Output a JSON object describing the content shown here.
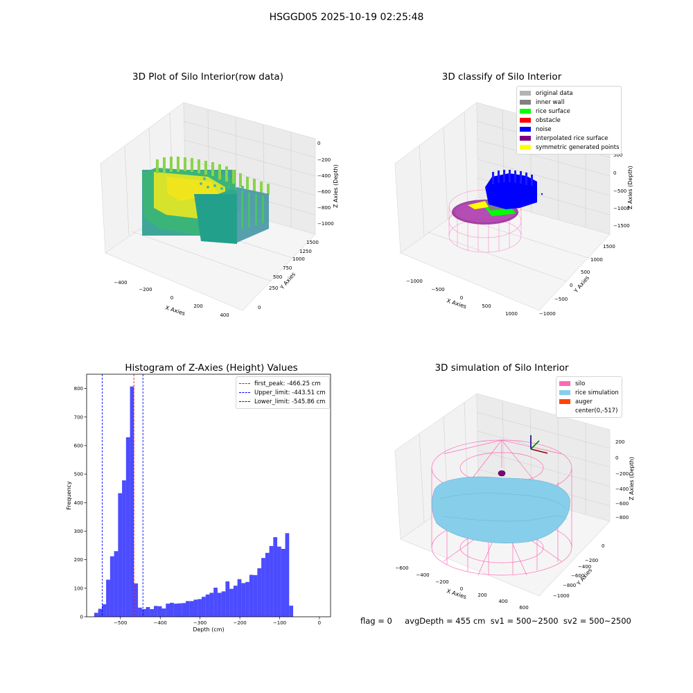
{
  "figure": {
    "suptitle": "HSGGD05 2025-10-19 02:25:48",
    "footer": "flag = 0     avgDepth = 455 cm  sv1 = 500~2500  sv2 = 500~2500"
  },
  "panels": {
    "raw": {
      "title": "3D Plot of Silo Interior(row data)",
      "xlabel": "X Axies",
      "ylabel": "Y Axies",
      "zlabel": "Z Axies (Depth)",
      "xticks": [
        "−400",
        "−200",
        "0",
        "200",
        "400"
      ],
      "yticks": [
        "0",
        "250",
        "500",
        "750",
        "1000",
        "1250",
        "1500"
      ],
      "zticks": [
        "0",
        "−200",
        "−400",
        "−600",
        "−800",
        "−1000"
      ]
    },
    "classify": {
      "title": "3D classify of Silo Interior",
      "xlabel": "X Axies",
      "ylabel": "Y Axies",
      "zlabel": "Z Axies (Depth)",
      "xticks": [
        "−1000",
        "−500",
        "0",
        "500",
        "1000"
      ],
      "yticks": [
        "−1000",
        "−500",
        "0",
        "500",
        "1000",
        "1500"
      ],
      "zticks": [
        "500",
        "0",
        "−500",
        "−1000",
        "−1500"
      ],
      "legend": [
        {
          "label": "original data",
          "color": "#b3b3b3"
        },
        {
          "label": "inner wall",
          "color": "#808080"
        },
        {
          "label": "rice surface",
          "color": "#00ff00"
        },
        {
          "label": "obstacle",
          "color": "#ff0000"
        },
        {
          "label": "noise",
          "color": "#0000ff"
        },
        {
          "label": "interpolated rice surface",
          "color": "#800080"
        },
        {
          "label": "symmetric generated points",
          "color": "#ffff00"
        }
      ]
    },
    "simulation": {
      "title": "3D simulation of Silo Interior",
      "xlabel": "X Axies",
      "ylabel": "Y Axies",
      "zlabel": "Z Axies (Depth)",
      "xticks": [
        "−600",
        "−400",
        "−200",
        "0",
        "200",
        "400",
        "600"
      ],
      "yticks": [
        "0",
        "−200",
        "−400",
        "−600",
        "−800",
        "−1000"
      ],
      "zticks": [
        "200",
        "0",
        "−200",
        "−400",
        "−600",
        "−800"
      ],
      "legend": [
        {
          "label": "silo",
          "color": "#ff69b4"
        },
        {
          "label": "rice simulation",
          "color": "#87ceeb"
        },
        {
          "label": "auger",
          "color": "#ff4500"
        },
        {
          "label": "center(0,-517)",
          "color": ""
        }
      ]
    }
  },
  "chart_data": {
    "type": "bar",
    "title": "Histogram of Z-Axies (Height) Values",
    "xlabel": "Depth (cm)",
    "ylabel": "Frequency",
    "xlim": [
      -585,
      28
    ],
    "ylim": [
      0,
      850
    ],
    "xticks": [
      -500,
      -400,
      -300,
      -200,
      -100,
      0
    ],
    "xtick_labels": [
      "−500",
      "−400",
      "−300",
      "−200",
      "−100",
      "0"
    ],
    "yticks": [
      0,
      100,
      200,
      300,
      400,
      500,
      600,
      700,
      800
    ],
    "bar_color": "#0000ff",
    "bins": [
      {
        "x0": -566,
        "x1": -556,
        "count": 14
      },
      {
        "x0": -556,
        "x1": -546,
        "count": 28
      },
      {
        "x0": -546,
        "x1": -536,
        "count": 44
      },
      {
        "x0": -536,
        "x1": -526,
        "count": 130
      },
      {
        "x0": -526,
        "x1": -516,
        "count": 212
      },
      {
        "x0": -516,
        "x1": -506,
        "count": 230
      },
      {
        "x0": -506,
        "x1": -496,
        "count": 433
      },
      {
        "x0": -496,
        "x1": -486,
        "count": 478
      },
      {
        "x0": -486,
        "x1": -476,
        "count": 629
      },
      {
        "x0": -476,
        "x1": -466,
        "count": 807
      },
      {
        "x0": -466,
        "x1": -456,
        "count": 117
      },
      {
        "x0": -456,
        "x1": -446,
        "count": 32
      },
      {
        "x0": -446,
        "x1": -436,
        "count": 27
      },
      {
        "x0": -436,
        "x1": -426,
        "count": 34
      },
      {
        "x0": -426,
        "x1": -416,
        "count": 27
      },
      {
        "x0": -416,
        "x1": -406,
        "count": 38
      },
      {
        "x0": -406,
        "x1": -396,
        "count": 37
      },
      {
        "x0": -396,
        "x1": -386,
        "count": 29
      },
      {
        "x0": -386,
        "x1": -376,
        "count": 46
      },
      {
        "x0": -376,
        "x1": -366,
        "count": 49
      },
      {
        "x0": -366,
        "x1": -356,
        "count": 46
      },
      {
        "x0": -356,
        "x1": -346,
        "count": 47
      },
      {
        "x0": -346,
        "x1": -336,
        "count": 48
      },
      {
        "x0": -336,
        "x1": -326,
        "count": 55
      },
      {
        "x0": -326,
        "x1": -316,
        "count": 55
      },
      {
        "x0": -316,
        "x1": -306,
        "count": 60
      },
      {
        "x0": -306,
        "x1": -296,
        "count": 62
      },
      {
        "x0": -296,
        "x1": -286,
        "count": 70
      },
      {
        "x0": -286,
        "x1": -276,
        "count": 78
      },
      {
        "x0": -276,
        "x1": -266,
        "count": 84
      },
      {
        "x0": -266,
        "x1": -256,
        "count": 102
      },
      {
        "x0": -256,
        "x1": -246,
        "count": 84
      },
      {
        "x0": -246,
        "x1": -236,
        "count": 89
      },
      {
        "x0": -236,
        "x1": -226,
        "count": 124
      },
      {
        "x0": -226,
        "x1": -216,
        "count": 98
      },
      {
        "x0": -216,
        "x1": -206,
        "count": 109
      },
      {
        "x0": -206,
        "x1": -196,
        "count": 132
      },
      {
        "x0": -196,
        "x1": -186,
        "count": 118
      },
      {
        "x0": -186,
        "x1": -176,
        "count": 122
      },
      {
        "x0": -176,
        "x1": -166,
        "count": 147
      },
      {
        "x0": -166,
        "x1": -156,
        "count": 146
      },
      {
        "x0": -156,
        "x1": -146,
        "count": 170
      },
      {
        "x0": -146,
        "x1": -136,
        "count": 206
      },
      {
        "x0": -136,
        "x1": -126,
        "count": 224
      },
      {
        "x0": -126,
        "x1": -116,
        "count": 248
      },
      {
        "x0": -116,
        "x1": -106,
        "count": 279
      },
      {
        "x0": -106,
        "x1": -96,
        "count": 246
      },
      {
        "x0": -96,
        "x1": -86,
        "count": 238
      },
      {
        "x0": -86,
        "x1": -76,
        "count": 293
      },
      {
        "x0": -76,
        "x1": -66,
        "count": 39
      }
    ],
    "vlines": [
      {
        "name": "first_peak",
        "label": "first_peak: -466.25 cm",
        "x": -466.25,
        "color": "#ff0000"
      },
      {
        "name": "upper-limit",
        "label": "Upper_limit: -443.51 cm",
        "x": -443.51,
        "color": "#0000ff"
      },
      {
        "name": "lower-limit",
        "label": "Lower_limit: -545.86 cm",
        "x": -545.86,
        "color": "#0000ff"
      }
    ],
    "legend_position": "upper right"
  }
}
